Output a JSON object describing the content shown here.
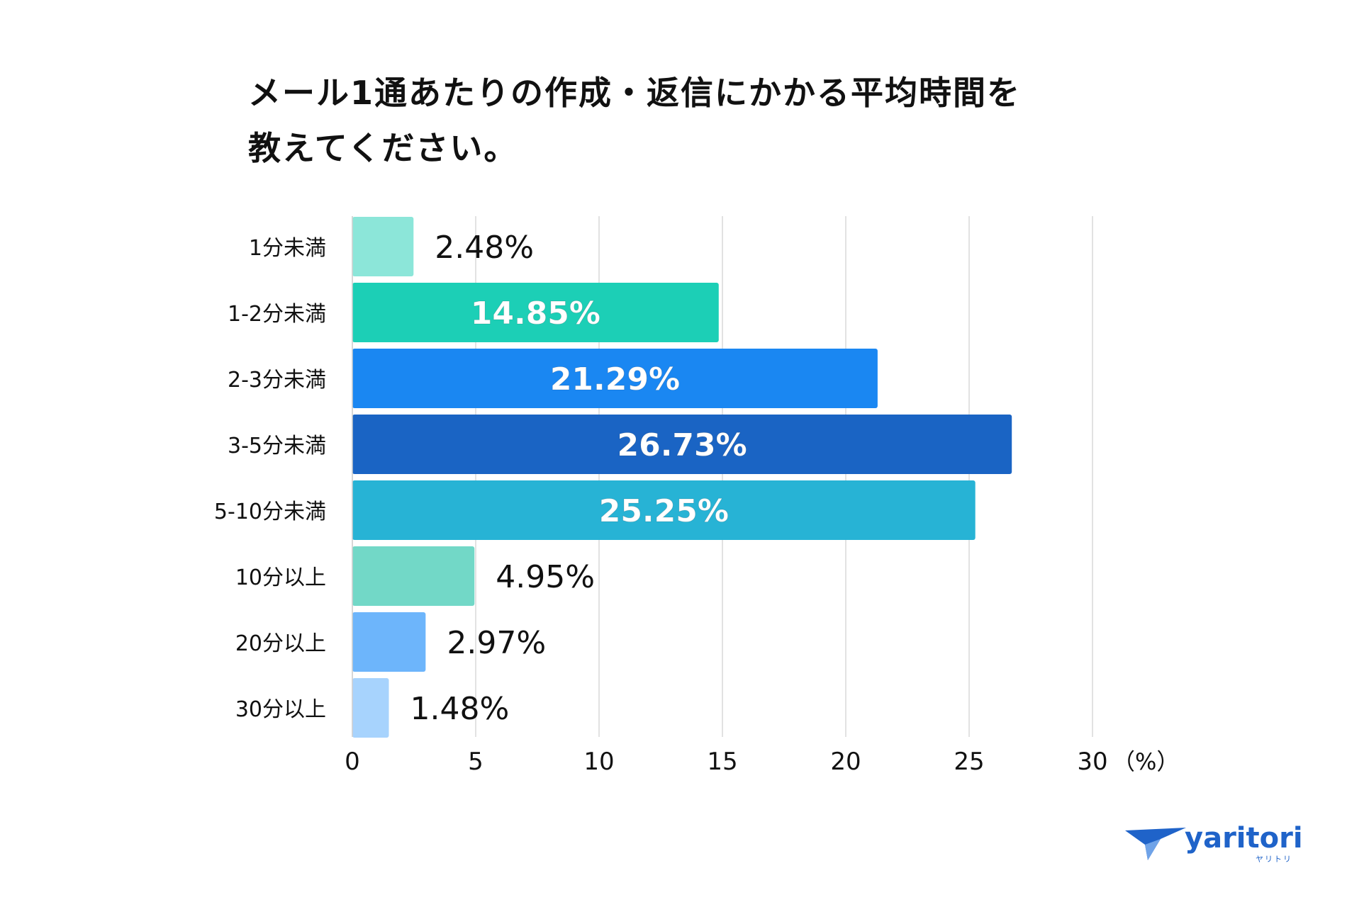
{
  "title_lines": [
    "メール1通あたりの作成・返信にかかる平均時間を",
    "教えてください。"
  ],
  "brand": {
    "name": "yaritori",
    "sub": "ヤリトリ",
    "color": "#1f63c9"
  },
  "chart_data": {
    "type": "bar",
    "orientation": "horizontal",
    "title": "メール1通あたりの作成・返信にかかる平均時間を教えてください。",
    "categories": [
      "1分未満",
      "1-2分未満",
      "2-3分未満",
      "3-5分未満",
      "5-10分未満",
      "10分以上",
      "20分以上",
      "30分以上"
    ],
    "values": [
      2.48,
      14.85,
      21.29,
      26.73,
      25.25,
      4.95,
      2.97,
      1.48
    ],
    "data_labels": [
      "2.48%",
      "14.85%",
      "21.29%",
      "26.73%",
      "25.25%",
      "4.95%",
      "2.97%",
      "1.48%"
    ],
    "colors": [
      "#8ce6d9",
      "#1ccfb6",
      "#1a87f2",
      "#1a64c4",
      "#27b3d5",
      "#72d8c7",
      "#6db5fb",
      "#a7d3fd"
    ],
    "label_inside": [
      false,
      true,
      true,
      true,
      true,
      false,
      false,
      false
    ],
    "xlim": [
      0,
      30
    ],
    "xticks": [
      0,
      5,
      10,
      15,
      20,
      25,
      30
    ],
    "xtick_labels": [
      "0",
      "5",
      "10",
      "15",
      "20",
      "25",
      "30"
    ],
    "unit_label": "（%）",
    "grid": true
  }
}
